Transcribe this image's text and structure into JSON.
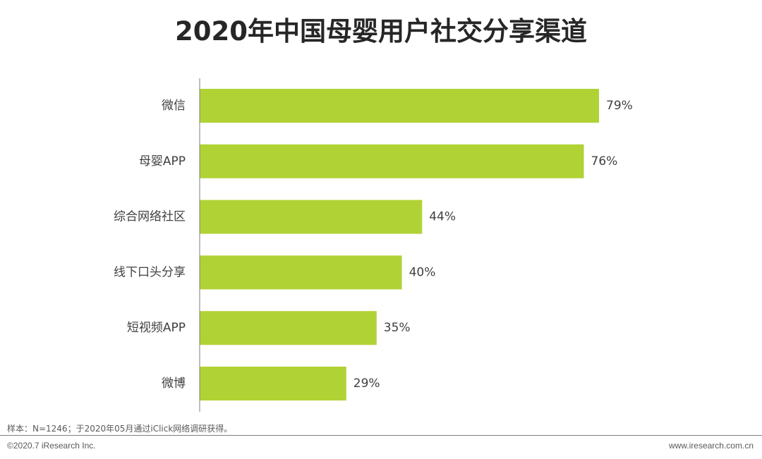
{
  "chart_data": {
    "type": "bar",
    "orientation": "horizontal",
    "title": "2020年中国母婴用户社交分享渠道",
    "categories": [
      "微信",
      "母婴APP",
      "综合网络社区",
      "线下口头分享",
      "短视频APP",
      "微博"
    ],
    "values": [
      79,
      76,
      44,
      40,
      35,
      29
    ],
    "value_labels": [
      "79%",
      "76%",
      "44%",
      "40%",
      "35%",
      "29%"
    ],
    "xlim": [
      0,
      100
    ],
    "grid": false,
    "bar_color": "#b1d235"
  },
  "footer": {
    "note": "样本：N=1246；于2020年05月通过iClick网络调研获得。",
    "copyright": "©2020.7 iResearch Inc.",
    "website": "www.iresearch.com.cn"
  },
  "colors": {
    "title": "#262626",
    "label": "#404040",
    "axis": "#7f7f7f"
  }
}
